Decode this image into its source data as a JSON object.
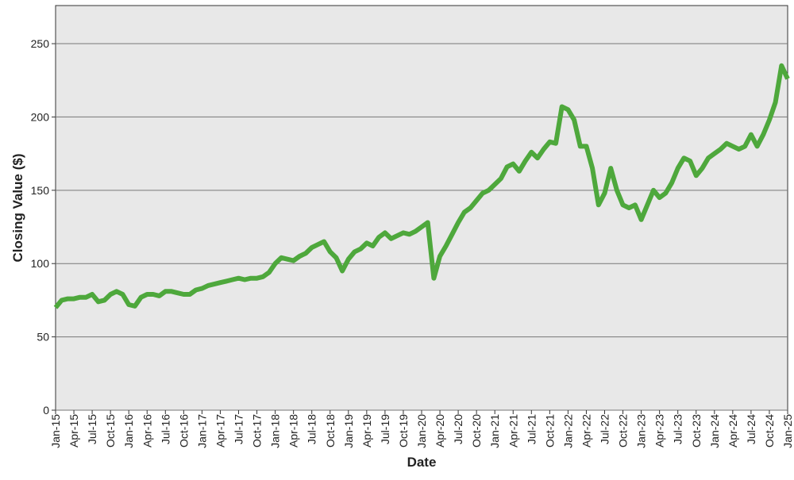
{
  "chart_data": {
    "type": "line",
    "x_label": "Date",
    "y_label": "Closing Value ($)",
    "categories": [
      "Jan-15",
      null,
      null,
      "Apr-15",
      null,
      null,
      "Jul-15",
      null,
      null,
      "Oct-15",
      null,
      null,
      "Jan-16",
      null,
      null,
      "Apr-16",
      null,
      null,
      "Jul-16",
      null,
      null,
      "Oct-16",
      null,
      null,
      "Jan-17",
      null,
      null,
      "Apr-17",
      null,
      null,
      "Jul-17",
      null,
      null,
      "Oct-17",
      null,
      null,
      "Jan-18",
      null,
      null,
      "Apr-18",
      null,
      null,
      "Jul-18",
      null,
      null,
      "Oct-18",
      null,
      null,
      "Jan-19",
      null,
      null,
      "Apr-19",
      null,
      null,
      "Jul-19",
      null,
      null,
      "Oct-19",
      null,
      null,
      "Jan-20",
      null,
      null,
      "Apr-20",
      null,
      null,
      "Jul-20",
      null,
      null,
      "Oct-20",
      null,
      null,
      "Jan-21",
      null,
      null,
      "Apr-21",
      null,
      null,
      "Jul-21",
      null,
      null,
      "Oct-21",
      null,
      null,
      "Jan-22",
      null,
      null,
      "Apr-22",
      null,
      null,
      "Jul-22",
      null,
      null,
      "Oct-22",
      null,
      null,
      "Jan-23",
      null,
      null,
      "Apr-23",
      null,
      null,
      "Jul-23",
      null,
      null,
      "Oct-23",
      null,
      null,
      "Jan-24",
      null,
      null,
      "Apr-24",
      null,
      null,
      "Jul-24",
      null,
      null,
      "Oct-24",
      null,
      null,
      "Jan-25"
    ],
    "series": [
      {
        "name": "Closing Value",
        "color": "#4ea83c",
        "values": [
          70,
          75,
          76,
          76,
          77,
          77,
          79,
          74,
          75,
          79,
          81,
          79,
          72,
          71,
          77,
          79,
          79,
          78,
          81,
          81,
          80,
          79,
          79,
          82,
          83,
          85,
          86,
          87,
          88,
          89,
          90,
          89,
          90,
          90,
          91,
          94,
          100,
          104,
          103,
          102,
          105,
          107,
          111,
          113,
          115,
          108,
          104,
          95,
          103,
          108,
          110,
          114,
          112,
          118,
          121,
          117,
          119,
          121,
          120,
          122,
          125,
          128,
          90,
          105,
          112,
          120,
          128,
          135,
          138,
          143,
          148,
          150,
          154,
          158,
          166,
          168,
          163,
          170,
          176,
          172,
          178,
          183,
          182,
          207,
          205,
          198,
          180,
          180,
          165,
          140,
          148,
          165,
          150,
          140,
          138,
          140,
          130,
          140,
          150,
          145,
          148,
          155,
          165,
          172,
          170,
          160,
          165,
          172,
          175,
          178,
          182,
          180,
          178,
          180,
          188,
          180,
          188,
          198,
          210,
          235,
          226
        ]
      }
    ],
    "ylim": [
      0,
      276
    ],
    "yticks": [
      0,
      50,
      100,
      150,
      200,
      250
    ],
    "grid": true
  }
}
